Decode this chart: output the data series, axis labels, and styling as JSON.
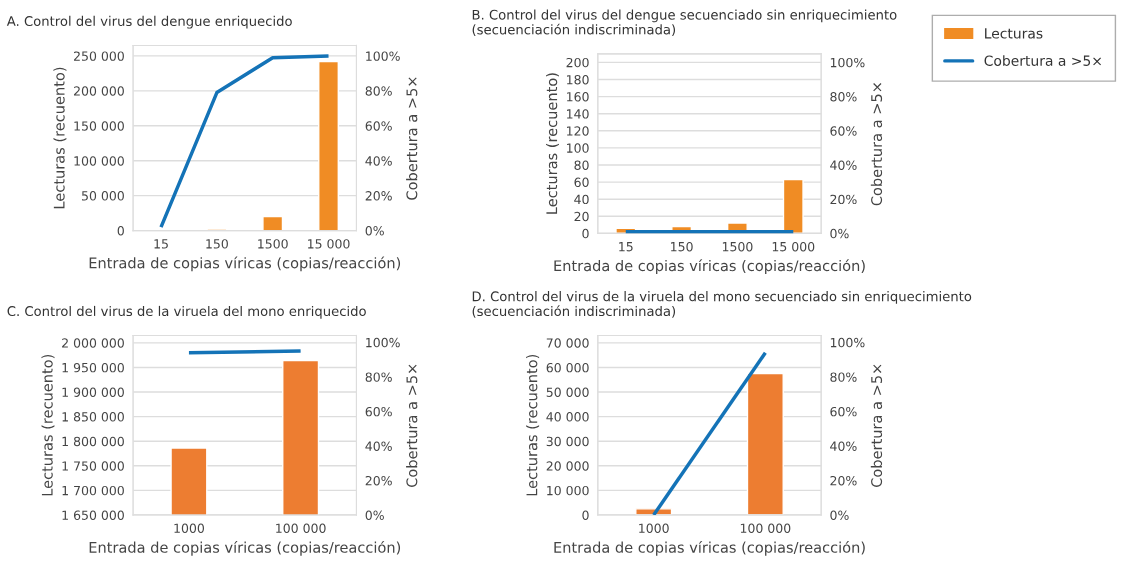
{
  "chart_data": [
    {
      "type": "bar",
      "title": "A. Control del virus del dengue enriquecido",
      "xlabel": "Entrada de copias víricas (copias/reacción)",
      "ylabel": "Lecturas (recuento)",
      "y2label": "Cobertura a >5×",
      "categories": [
        "15",
        "150",
        "1500",
        "15 000"
      ],
      "series": [
        {
          "color": "#f08c24",
          "values": [
            null,
            2000,
            20000,
            242000
          ]
        },
        {
          "type": "line",
          "axis": "y2",
          "color": "#1473b7",
          "values": [
            2,
            79,
            99,
            100
          ]
        }
      ],
      "ylim": [
        0,
        265000
      ],
      "yticks": [
        {
          "value": 0,
          "label": "0"
        },
        {
          "value": 50000,
          "label": "50 000"
        },
        {
          "value": 100000,
          "label": "100 000"
        },
        {
          "value": 150000,
          "label": "150 000"
        },
        {
          "value": 200000,
          "label": "200 000"
        },
        {
          "value": 250000,
          "label": "250 000"
        }
      ],
      "y2lim": [
        0,
        106
      ],
      "y2ticks": [
        {
          "value": 0,
          "label": "0%"
        },
        {
          "value": 20,
          "label": "20%"
        },
        {
          "value": 40,
          "label": "40%"
        },
        {
          "value": 60,
          "label": "60%"
        },
        {
          "value": 80,
          "label": "80%"
        },
        {
          "value": 100,
          "label": "100%"
        }
      ],
      "grid": "y"
    },
    {
      "type": "bar",
      "title": "B. Control del virus del dengue secuenciado sin enriquecimiento\n(secuenciación indiscriminada)",
      "xlabel": "Entrada de copias víricas (copias/reacción)",
      "ylabel": "Lecturas (recuento)",
      "y2label": "Cobertura a >5×",
      "categories": [
        "15",
        "150",
        "1500",
        "15 000"
      ],
      "series": [
        {
          "name": "Lecturas",
          "color": "#f08c24",
          "values": [
            6,
            8,
            12,
            63
          ]
        },
        {
          "type": "line",
          "axis": "y2",
          "name": "Cobertura a >5×",
          "color": "#1473b7",
          "values": [
            1,
            1,
            1,
            1
          ]
        }
      ],
      "ylim": [
        0,
        210
      ],
      "yticks": [
        0,
        20,
        40,
        60,
        80,
        100,
        120,
        140,
        160,
        180,
        200
      ],
      "y2lim": [
        0,
        105
      ],
      "y2ticks": [
        {
          "value": 0,
          "label": "0%"
        },
        {
          "value": 20,
          "label": "20%"
        },
        {
          "value": 40,
          "label": "40%"
        },
        {
          "value": 60,
          "label": "60%"
        },
        {
          "value": 80,
          "label": "80%"
        },
        {
          "value": 100,
          "label": "100%"
        }
      ],
      "grid": "y",
      "legend": "top right"
    },
    {
      "type": "bar",
      "title": "C. Control del virus de la viruela del mono enriquecido",
      "xlabel": "Entrada de copias víricas (copias/reacción)",
      "ylabel": "Lecturas (recuento)",
      "y2label": "Cobertura a >5×",
      "categories": [
        "1000",
        "100 000"
      ],
      "series": [
        {
          "color": "#ed7d31",
          "values": [
            1786000,
            1964000
          ]
        },
        {
          "type": "line",
          "axis": "y2",
          "color": "#1473b7",
          "values": [
            94,
            95
          ]
        }
      ],
      "ylim": [
        1650000,
        2015000
      ],
      "yticks": [
        {
          "value": 1650000,
          "label": "1 650 000"
        },
        {
          "value": 1700000,
          "label": "1 700 000"
        },
        {
          "value": 1750000,
          "label": "1 750 000"
        },
        {
          "value": 1800000,
          "label": "1 800 000"
        },
        {
          "value": 1850000,
          "label": "1 850 000"
        },
        {
          "value": 1900000,
          "label": "1 900 000"
        },
        {
          "value": 1950000,
          "label": "1 950 000"
        },
        {
          "value": 2000000,
          "label": "2 000 000"
        }
      ],
      "y2lim": [
        0,
        104
      ],
      "y2ticks": [
        {
          "value": 0,
          "label": "0%"
        },
        {
          "value": 20,
          "label": "20%"
        },
        {
          "value": 40,
          "label": "40%"
        },
        {
          "value": 60,
          "label": "60%"
        },
        {
          "value": 80,
          "label": "80%"
        },
        {
          "value": 100,
          "label": "100%"
        }
      ],
      "grid": "y"
    },
    {
      "type": "bar",
      "title": "D. Control del virus de la viruela del mono secuenciado sin enriquecimiento\n(secuenciación indiscriminada)",
      "xlabel": "Entrada de copias víricas (copias/reacción)",
      "ylabel": "Lecturas (recuento)",
      "y2label": "Cobertura a >5×",
      "categories": [
        "1000",
        "100 000"
      ],
      "series": [
        {
          "color": "#ed7d31",
          "values": [
            2500,
            57500
          ]
        },
        {
          "type": "line",
          "axis": "y2",
          "color": "#1473b7",
          "values": [
            0,
            94
          ]
        }
      ],
      "ylim": [
        0,
        73000
      ],
      "yticks": [
        {
          "value": 0,
          "label": "0"
        },
        {
          "value": 10000,
          "label": "10 000"
        },
        {
          "value": 20000,
          "label": "20 000"
        },
        {
          "value": 30000,
          "label": "30 000"
        },
        {
          "value": 40000,
          "label": "40 000"
        },
        {
          "value": 50000,
          "label": "50 000"
        },
        {
          "value": 60000,
          "label": "60 000"
        },
        {
          "value": 70000,
          "label": "70 000"
        }
      ],
      "y2lim": [
        0,
        104
      ],
      "y2ticks": [
        {
          "value": 0,
          "label": "0%"
        },
        {
          "value": 20,
          "label": "20%"
        },
        {
          "value": 40,
          "label": "40%"
        },
        {
          "value": 60,
          "label": "60%"
        },
        {
          "value": 80,
          "label": "80%"
        },
        {
          "value": 100,
          "label": "100%"
        }
      ],
      "grid": "y"
    }
  ]
}
